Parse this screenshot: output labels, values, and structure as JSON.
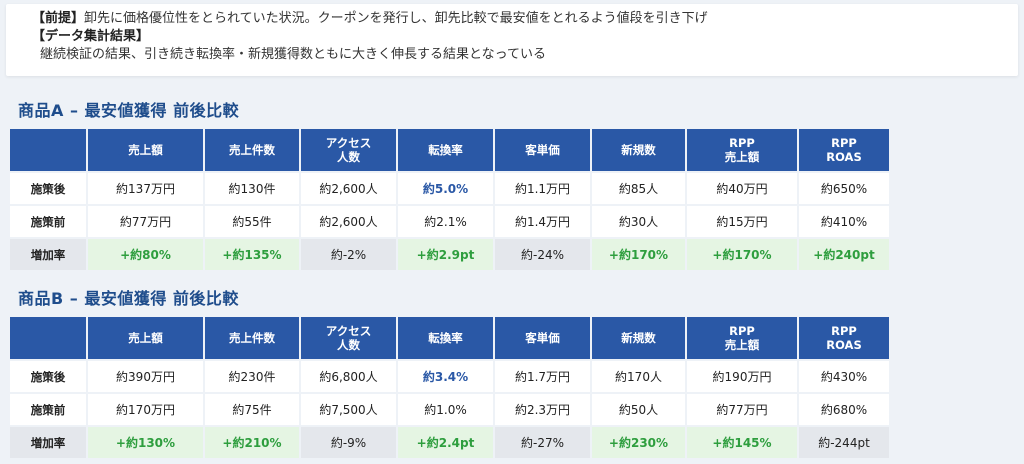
{
  "premise": {
    "line1_head": "【前提】",
    "line1_text": "卸先に価格優位性をとられていた状況。クーポンを発行し、卸先比較で最安値をとれるよう値段を引き下げ",
    "line2_head": "【データ集計結果】",
    "line3_text": "継続検証の結果、引き続き転換率・新規獲得数ともに大きく伸長する結果となっている"
  },
  "columns": [
    "売上額",
    "売上件数",
    "アクセス\n人数",
    "転換率",
    "客単価",
    "新規数",
    "RPP\n売上額",
    "RPP\nROAS"
  ],
  "row_labels": {
    "after": "施策後",
    "before": "施策前",
    "increase": "増加率"
  },
  "products": [
    {
      "title": "商品A – 最安値獲得 前後比較",
      "after": [
        "約137万円",
        "約130件",
        "約2,600人",
        "約5.0%",
        "約1.1万円",
        "約85人",
        "約40万円",
        "約650%"
      ],
      "before": [
        "約77万円",
        "約55件",
        "約2,600人",
        "約2.1%",
        "約1.4万円",
        "約30人",
        "約15万円",
        "約410%"
      ],
      "increase": [
        "+約80%",
        "+約135%",
        "約-2%",
        "+約2.9pt",
        "約-24%",
        "+約170%",
        "+約170%",
        "+約240pt"
      ]
    },
    {
      "title": "商品B – 最安値獲得 前後比較",
      "after": [
        "約390万円",
        "約230件",
        "約6,800人",
        "約3.4%",
        "約1.7万円",
        "約170人",
        "約190万円",
        "約430%"
      ],
      "before": [
        "約170万円",
        "約75件",
        "約7,500人",
        "約1.0%",
        "約2.3万円",
        "約50人",
        "約77万円",
        "約680%"
      ],
      "increase": [
        "+約130%",
        "+約210%",
        "約-9%",
        "+約2.4pt",
        "約-27%",
        "+約230%",
        "+約145%",
        "約-244pt"
      ]
    }
  ]
}
